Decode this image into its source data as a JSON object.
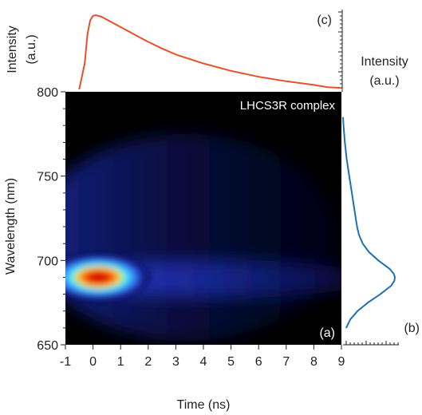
{
  "chart_data": [
    {
      "panel": "(a)",
      "type": "heatmap",
      "annotation": "LHCS3R complex",
      "xlabel": "Time (ns)",
      "ylabel": "Wavelength (nm)",
      "xlim": [
        -1,
        9
      ],
      "ylim": [
        650,
        800
      ],
      "x_ticks": [
        -1,
        0,
        1,
        2,
        3,
        4,
        5,
        6,
        7,
        8,
        9
      ],
      "y_ticks": [
        650,
        700,
        750,
        800
      ],
      "peak": {
        "time_ns": 0.2,
        "wavelength_nm": 690
      },
      "background": "#000000",
      "colormap": [
        "#000010",
        "#0a1060",
        "#2a3cd0",
        "#3aa0ff",
        "#40f0ff",
        "#e8f040",
        "#ff8000",
        "#e00000",
        "#c00000"
      ]
    },
    {
      "panel": "(b)",
      "type": "line",
      "ylabel": "Intensity (a.u.)",
      "series": [
        {
          "color": "#1f6fb5",
          "wavelength_nm": [
            660,
            665,
            670,
            675,
            680,
            685,
            688,
            690,
            692,
            695,
            700,
            705,
            710,
            715,
            720,
            730,
            740,
            750,
            760,
            770,
            780,
            785
          ],
          "values": [
            0.06,
            0.14,
            0.28,
            0.48,
            0.72,
            0.93,
            0.99,
            1.0,
            0.98,
            0.9,
            0.68,
            0.5,
            0.38,
            0.31,
            0.27,
            0.22,
            0.17,
            0.12,
            0.07,
            0.035,
            0.01,
            0.0
          ]
        }
      ]
    },
    {
      "panel": "(c)",
      "type": "line",
      "ylabel": "Intensity (a.u.)",
      "series": [
        {
          "color": "#e8502a",
          "time_ns": [
            -0.5,
            -0.3,
            -0.2,
            -0.1,
            0.0,
            0.1,
            0.3,
            0.5,
            1.0,
            1.5,
            2.0,
            2.5,
            3.0,
            4.0,
            5.0,
            6.0,
            7.0,
            8.0,
            8.5,
            9.0
          ],
          "values": [
            0.0,
            0.35,
            0.75,
            0.93,
            0.99,
            1.0,
            0.98,
            0.94,
            0.84,
            0.74,
            0.64,
            0.55,
            0.47,
            0.35,
            0.25,
            0.17,
            0.11,
            0.06,
            0.03,
            0.02
          ]
        }
      ]
    }
  ],
  "labels": {
    "panel_a": "(a)",
    "panel_b": "(b)",
    "panel_c": "(c)",
    "annotation": "LHCS3R complex",
    "xlabel": "Time (ns)",
    "ylabel": "Wavelength (nm)",
    "c_ylabel_line1": "Intensity",
    "c_ylabel_line2": "(a.u.)",
    "b_label_line1": "Intensity",
    "b_label_line2": "(a.u.)"
  }
}
